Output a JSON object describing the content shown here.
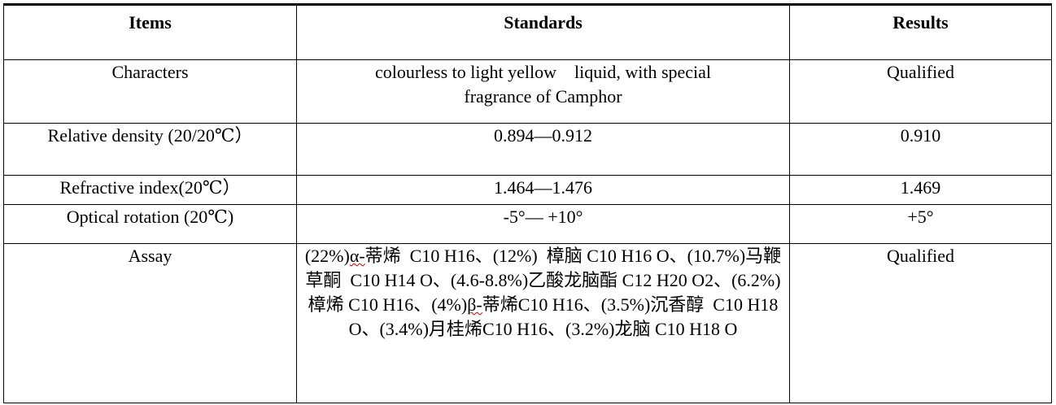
{
  "headers": {
    "items": "Items",
    "standards": "Standards",
    "results": "Results"
  },
  "rows": {
    "characters": {
      "item": "Characters",
      "standard_line1": "colourless to light yellow    liquid, with special",
      "standard_line2": "fragrance of Camphor",
      "result": "Qualified"
    },
    "density": {
      "item": "Relative density (20/20℃）",
      "standard": "0.894—0.912",
      "result": "0.910"
    },
    "refractive": {
      "item": "Refractive index(20℃）",
      "standard": "1.464—1.476",
      "result": "1.469"
    },
    "optical": {
      "item": "Optical rotation (20℃)",
      "standard": "-5°— +10°",
      "result": "+5°"
    },
    "assay": {
      "item": "Assay",
      "result": "Qualified",
      "s1": "(22%)",
      "s2": "α-",
      "s3": "蒂烯  C10 H16、(12%)  樟脑 C10 H16 O、",
      "s4": "(10.7%)马鞭草酮  C10 H14 O、(4.6-8.8%)乙酸龙脑",
      "s5": "酯 C12 H20 O2、(6.2%)樟烯 C10 H16、(4%)",
      "s6": "β-",
      "s7": "蒂烯",
      "s8": "C10 H16、(3.5%)沉香醇  C10 H18 O、(3.4%)月桂烯",
      "s9": "C10 H16、(3.2%)龙脑 C10 H18 O"
    }
  }
}
